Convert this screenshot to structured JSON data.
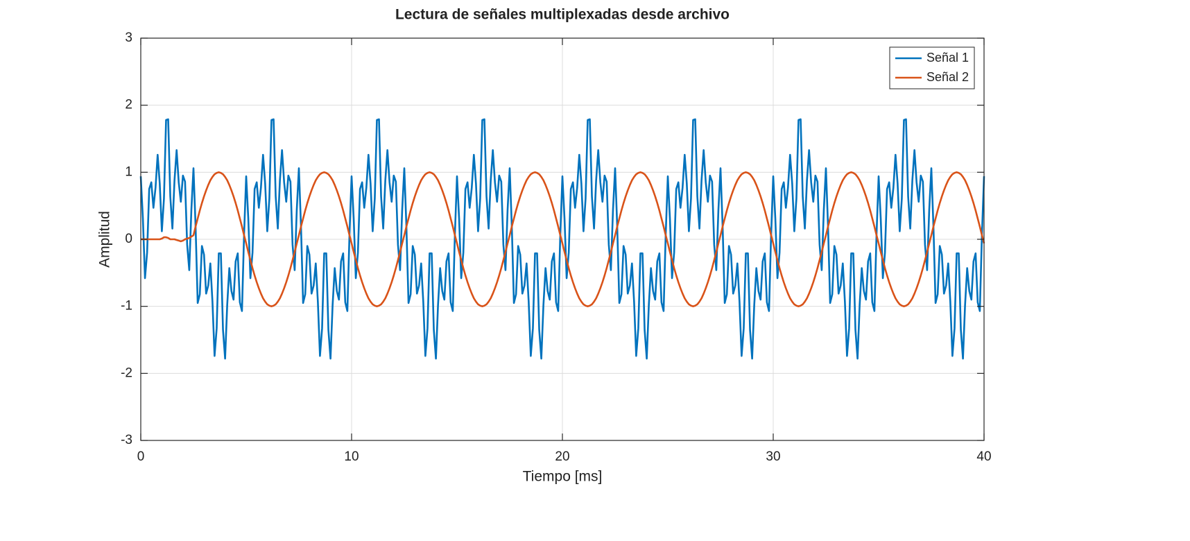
{
  "chart_data": {
    "type": "line",
    "title": "Lectura de señales multiplexadas desde archivo",
    "x_label": "Tiempo [ms]",
    "y_label": "Amplitud",
    "xlim": [
      0,
      40
    ],
    "xticks": [
      0,
      10,
      20,
      30,
      40
    ],
    "ylim": [
      -3,
      3
    ],
    "yticks": [
      -3,
      -2,
      -1,
      0,
      1,
      2,
      3
    ],
    "grid": true,
    "legend": "upper right",
    "x": [
      0,
      0.1,
      0.2,
      0.3,
      0.4,
      0.5,
      0.6,
      0.7,
      0.8,
      0.9,
      1,
      1.1,
      1.2,
      1.3,
      1.4,
      1.5,
      1.6,
      1.7,
      1.8,
      1.9,
      2,
      2.1,
      2.2,
      2.3,
      2.4,
      2.5,
      2.6,
      2.7,
      2.8,
      2.9,
      3,
      3.1,
      3.2,
      3.3,
      3.4,
      3.5,
      3.6,
      3.7,
      3.8,
      3.9,
      4,
      4.1,
      4.2,
      4.3,
      4.4,
      4.5,
      4.6,
      4.7,
      4.8,
      4.9,
      5,
      5.1,
      5.2,
      5.3,
      5.4,
      5.5,
      5.6,
      5.7,
      5.8,
      5.9,
      6,
      6.1,
      6.2,
      6.3,
      6.4,
      6.5,
      6.6,
      6.7,
      6.8,
      6.9,
      7,
      7.1,
      7.2,
      7.3,
      7.4,
      7.5,
      7.6,
      7.7,
      7.8,
      7.9,
      8,
      8.1,
      8.2,
      8.3,
      8.4,
      8.5,
      8.6,
      8.7,
      8.8,
      8.9,
      9,
      9.1,
      9.2,
      9.3,
      9.4,
      9.5,
      9.6,
      9.7,
      9.8,
      9.9,
      10,
      10.1,
      10.2,
      10.3,
      10.4,
      10.5,
      10.6,
      10.7,
      10.8,
      10.9,
      11,
      11.1,
      11.2,
      11.3,
      11.4,
      11.5,
      11.6,
      11.7,
      11.8,
      11.9,
      12,
      12.1,
      12.2,
      12.3,
      12.4,
      12.5,
      12.6,
      12.7,
      12.8,
      12.9,
      13,
      13.1,
      13.2,
      13.3,
      13.4,
      13.5,
      13.6,
      13.7,
      13.8,
      13.9,
      14,
      14.1,
      14.2,
      14.3,
      14.4,
      14.5,
      14.6,
      14.7,
      14.8,
      14.9,
      15,
      15.1,
      15.2,
      15.3,
      15.4,
      15.5,
      15.6,
      15.7,
      15.8,
      15.9,
      16,
      16.1,
      16.2,
      16.3,
      16.4,
      16.5,
      16.6,
      16.7,
      16.8,
      16.9,
      17,
      17.1,
      17.2,
      17.3,
      17.4,
      17.5,
      17.6,
      17.7,
      17.8,
      17.9,
      18,
      18.1,
      18.2,
      18.3,
      18.4,
      18.5,
      18.6,
      18.7,
      18.8,
      18.9,
      19,
      19.1,
      19.2,
      19.3,
      19.4,
      19.5,
      19.6,
      19.7,
      19.8,
      19.9,
      20,
      20.1,
      20.2,
      20.3,
      20.4,
      20.5,
      20.6,
      20.7,
      20.8,
      20.9,
      21,
      21.1,
      21.2,
      21.3,
      21.4,
      21.5,
      21.6,
      21.7,
      21.8,
      21.9,
      22,
      22.1,
      22.2,
      22.3,
      22.4,
      22.5,
      22.6,
      22.7,
      22.8,
      22.9,
      23,
      23.1,
      23.2,
      23.3,
      23.4,
      23.5,
      23.6,
      23.7,
      23.8,
      23.9,
      24,
      24.1,
      24.2,
      24.3,
      24.4,
      24.5,
      24.6,
      24.7,
      24.8,
      24.9,
      25,
      25.1,
      25.2,
      25.3,
      25.4,
      25.5,
      25.6,
      25.7,
      25.8,
      25.9,
      26,
      26.1,
      26.2,
      26.3,
      26.4,
      26.5,
      26.6,
      26.7,
      26.8,
      26.9,
      27,
      27.1,
      27.2,
      27.3,
      27.4,
      27.5,
      27.6,
      27.7,
      27.8,
      27.9,
      28,
      28.1,
      28.2,
      28.3,
      28.4,
      28.5,
      28.6,
      28.7,
      28.8,
      28.9,
      29,
      29.1,
      29.2,
      29.3,
      29.4,
      29.5,
      29.6,
      29.7,
      29.8,
      29.9,
      30,
      30.1,
      30.2,
      30.3,
      30.4,
      30.5,
      30.6,
      30.7,
      30.8,
      30.9,
      31,
      31.1,
      31.2,
      31.3,
      31.4,
      31.5,
      31.6,
      31.7,
      31.8,
      31.9,
      32,
      32.1,
      32.2,
      32.3,
      32.4,
      32.5,
      32.6,
      32.7,
      32.8,
      32.9,
      33,
      33.1,
      33.2,
      33.3,
      33.4,
      33.5,
      33.6,
      33.7,
      33.8,
      33.9,
      34,
      34.1,
      34.2,
      34.3,
      34.4,
      34.5,
      34.6,
      34.7,
      34.8,
      34.9,
      35,
      35.1,
      35.2,
      35.3,
      35.4,
      35.5,
      35.6,
      35.7,
      35.8,
      35.9,
      36,
      36.1,
      36.2,
      36.3,
      36.4,
      36.5,
      36.6,
      36.7,
      36.8,
      36.9,
      37,
      37.1,
      37.2,
      37.3,
      37.4,
      37.5,
      37.6,
      37.7,
      37.8,
      37.9,
      38,
      38.1,
      38.2,
      38.3,
      38.4,
      38.5,
      38.6,
      38.7,
      38.8,
      38.9,
      39,
      39.1,
      39.2,
      39.3,
      39.4,
      39.5,
      39.6,
      39.7,
      39.8,
      39.9,
      40
    ],
    "series": [
      {
        "name": "Señal 1",
        "color": "#0072bd",
        "values": [
          0.94,
          0.31,
          -0.58,
          -0.2,
          0.75,
          0.85,
          0.47,
          0.77,
          1.26,
          0.83,
          0.12,
          0.61,
          1.78,
          1.79,
          0.64,
          0.16,
          0.88,
          1.33,
          0.85,
          0.56,
          0.95,
          0.86,
          -0.08,
          -0.46,
          0.44,
          1.06,
          0.19,
          -0.95,
          -0.82,
          -0.1,
          -0.23,
          -0.81,
          -0.69,
          -0.36,
          -0.93,
          -1.74,
          -1.33,
          -0.21,
          -0.21,
          -1.35,
          -1.78,
          -0.98,
          -0.43,
          -0.77,
          -0.9,
          -0.33,
          -0.21,
          -0.94,
          -1.07,
          0.07,
          0.94,
          0.31,
          -0.58,
          -0.2,
          0.75,
          0.85,
          0.47,
          0.77,
          1.26,
          0.83,
          0.12,
          0.61,
          1.78,
          1.79,
          0.64,
          0.16,
          0.88,
          1.33,
          0.85,
          0.56,
          0.95,
          0.86,
          -0.08,
          -0.46,
          0.44,
          1.06,
          0.19,
          -0.95,
          -0.82,
          -0.1,
          -0.23,
          -0.81,
          -0.69,
          -0.36,
          -0.93,
          -1.74,
          -1.33,
          -0.21,
          -0.21,
          -1.35,
          -1.78,
          -0.98,
          -0.43,
          -0.77,
          -0.9,
          -0.33,
          -0.21,
          -0.94,
          -1.07,
          0.07,
          0.94,
          0.31,
          -0.58,
          -0.2,
          0.75,
          0.85,
          0.47,
          0.77,
          1.26,
          0.83,
          0.12,
          0.61,
          1.78,
          1.79,
          0.64,
          0.16,
          0.88,
          1.33,
          0.85,
          0.56,
          0.95,
          0.86,
          -0.08,
          -0.46,
          0.44,
          1.06,
          0.19,
          -0.95,
          -0.82,
          -0.1,
          -0.23,
          -0.81,
          -0.69,
          -0.36,
          -0.93,
          -1.74,
          -1.33,
          -0.21,
          -0.21,
          -1.35,
          -1.78,
          -0.98,
          -0.43,
          -0.77,
          -0.9,
          -0.33,
          -0.21,
          -0.94,
          -1.07,
          0.07,
          0.94,
          0.31,
          -0.58,
          -0.2,
          0.75,
          0.85,
          0.47,
          0.77,
          1.26,
          0.83,
          0.12,
          0.61,
          1.78,
          1.79,
          0.64,
          0.16,
          0.88,
          1.33,
          0.85,
          0.56,
          0.95,
          0.86,
          -0.08,
          -0.46,
          0.44,
          1.06,
          0.19,
          -0.95,
          -0.82,
          -0.1,
          -0.23,
          -0.81,
          -0.69,
          -0.36,
          -0.93,
          -1.74,
          -1.33,
          -0.21,
          -0.21,
          -1.35,
          -1.78,
          -0.98,
          -0.43,
          -0.77,
          -0.9,
          -0.33,
          -0.21,
          -0.94,
          -1.07,
          0.07,
          0.94,
          0.31,
          -0.58,
          -0.2,
          0.75,
          0.85,
          0.47,
          0.77,
          1.26,
          0.83,
          0.12,
          0.61,
          1.78,
          1.79,
          0.64,
          0.16,
          0.88,
          1.33,
          0.85,
          0.56,
          0.95,
          0.86,
          -0.08,
          -0.46,
          0.44,
          1.06,
          0.19,
          -0.95,
          -0.82,
          -0.1,
          -0.23,
          -0.81,
          -0.69,
          -0.36,
          -0.93,
          -1.74,
          -1.33,
          -0.21,
          -0.21,
          -1.35,
          -1.78,
          -0.98,
          -0.43,
          -0.77,
          -0.9,
          -0.33,
          -0.21,
          -0.94,
          -1.07,
          0.07,
          0.94,
          0.31,
          -0.58,
          -0.2,
          0.75,
          0.85,
          0.47,
          0.77,
          1.26,
          0.83,
          0.12,
          0.61,
          1.78,
          1.79,
          0.64,
          0.16,
          0.88,
          1.33,
          0.85,
          0.56,
          0.95,
          0.86,
          -0.08,
          -0.46,
          0.44,
          1.06,
          0.19,
          -0.95,
          -0.82,
          -0.1,
          -0.23,
          -0.81,
          -0.69,
          -0.36,
          -0.93,
          -1.74,
          -1.33,
          -0.21,
          -0.21,
          -1.35,
          -1.78,
          -0.98,
          -0.43,
          -0.77,
          -0.9,
          -0.33,
          -0.21,
          -0.94,
          -1.07,
          0.07,
          0.94,
          0.31,
          -0.58,
          -0.2,
          0.75,
          0.85,
          0.47,
          0.77,
          1.26,
          0.83,
          0.12,
          0.61,
          1.78,
          1.79,
          0.64,
          0.16,
          0.88,
          1.33,
          0.85,
          0.56,
          0.95,
          0.86,
          -0.08,
          -0.46,
          0.44,
          1.06,
          0.19,
          -0.95,
          -0.82,
          -0.1,
          -0.23,
          -0.81,
          -0.69,
          -0.36,
          -0.93,
          -1.74,
          -1.33,
          -0.21,
          -0.21,
          -1.35,
          -1.78,
          -0.98,
          -0.43,
          -0.77,
          -0.9,
          -0.33,
          -0.21,
          -0.94,
          -1.07,
          0.07,
          0.94,
          0.31,
          -0.58,
          -0.2,
          0.75,
          0.85,
          0.47,
          0.77,
          1.26,
          0.83,
          0.12,
          0.61,
          1.78,
          1.79,
          0.64,
          0.16,
          0.88,
          1.33,
          0.85,
          0.56,
          0.95,
          0.86,
          -0.08,
          -0.46,
          0.44,
          1.06,
          0.19,
          -0.95,
          -0.82,
          -0.1,
          -0.23,
          -0.81,
          -0.69,
          -0.36,
          -0.93,
          -1.74,
          -1.33,
          -0.21,
          -0.21,
          -1.35,
          -1.78,
          -0.98,
          -0.43,
          -0.77,
          -0.9,
          -0.33,
          -0.21,
          -0.94,
          -1.07,
          0.07,
          0.94
        ]
      },
      {
        "name": "Señal 2",
        "color": "#d95319",
        "values": [
          0,
          0,
          0,
          0,
          0,
          0,
          0,
          0,
          0,
          0,
          0.01,
          0.03,
          0.03,
          0.02,
          0,
          0,
          0,
          -0.01,
          -0.02,
          -0.03,
          -0.02,
          0,
          0.01,
          0.02,
          0.04,
          0.06,
          0.19,
          0.31,
          0.43,
          0.54,
          0.64,
          0.73,
          0.81,
          0.88,
          0.93,
          0.97,
          0.99,
          1,
          0.99,
          0.97,
          0.93,
          0.88,
          0.81,
          0.73,
          0.64,
          0.54,
          0.43,
          0.31,
          0.19,
          0.06,
          -0.06,
          -0.19,
          -0.31,
          -0.43,
          -0.54,
          -0.64,
          -0.73,
          -0.81,
          -0.88,
          -0.93,
          -0.97,
          -0.99,
          -1,
          -0.99,
          -0.97,
          -0.93,
          -0.88,
          -0.81,
          -0.73,
          -0.64,
          -0.54,
          -0.43,
          -0.31,
          -0.19,
          -0.06,
          0.06,
          0.19,
          0.31,
          0.43,
          0.54,
          0.64,
          0.73,
          0.81,
          0.88,
          0.93,
          0.97,
          0.99,
          1,
          0.99,
          0.97,
          0.93,
          0.88,
          0.81,
          0.73,
          0.64,
          0.54,
          0.43,
          0.31,
          0.19,
          0.06,
          -0.06,
          -0.19,
          -0.31,
          -0.43,
          -0.54,
          -0.64,
          -0.73,
          -0.81,
          -0.88,
          -0.93,
          -0.97,
          -0.99,
          -1,
          -0.99,
          -0.97,
          -0.93,
          -0.88,
          -0.81,
          -0.73,
          -0.64,
          -0.54,
          -0.43,
          -0.31,
          -0.19,
          -0.06,
          0.06,
          0.19,
          0.31,
          0.43,
          0.54,
          0.64,
          0.73,
          0.81,
          0.88,
          0.93,
          0.97,
          0.99,
          1,
          0.99,
          0.97,
          0.93,
          0.88,
          0.81,
          0.73,
          0.64,
          0.54,
          0.43,
          0.31,
          0.19,
          0.06,
          -0.06,
          -0.19,
          -0.31,
          -0.43,
          -0.54,
          -0.64,
          -0.73,
          -0.81,
          -0.88,
          -0.93,
          -0.97,
          -0.99,
          -1,
          -0.99,
          -0.97,
          -0.93,
          -0.88,
          -0.81,
          -0.73,
          -0.64,
          -0.54,
          -0.43,
          -0.31,
          -0.19,
          -0.06,
          0.06,
          0.19,
          0.31,
          0.43,
          0.54,
          0.64,
          0.73,
          0.81,
          0.88,
          0.93,
          0.97,
          0.99,
          1,
          0.99,
          0.97,
          0.93,
          0.88,
          0.81,
          0.73,
          0.64,
          0.54,
          0.43,
          0.31,
          0.19,
          0.06,
          -0.06,
          -0.19,
          -0.31,
          -0.43,
          -0.54,
          -0.64,
          -0.73,
          -0.81,
          -0.88,
          -0.93,
          -0.97,
          -0.99,
          -1,
          -0.99,
          -0.97,
          -0.93,
          -0.88,
          -0.81,
          -0.73,
          -0.64,
          -0.54,
          -0.43,
          -0.31,
          -0.19,
          -0.06,
          0.06,
          0.19,
          0.31,
          0.43,
          0.54,
          0.64,
          0.73,
          0.81,
          0.88,
          0.93,
          0.97,
          0.99,
          1,
          0.99,
          0.97,
          0.93,
          0.88,
          0.81,
          0.73,
          0.64,
          0.54,
          0.43,
          0.31,
          0.19,
          0.06,
          -0.06,
          -0.19,
          -0.31,
          -0.43,
          -0.54,
          -0.64,
          -0.73,
          -0.81,
          -0.88,
          -0.93,
          -0.97,
          -0.99,
          -1,
          -0.99,
          -0.97,
          -0.93,
          -0.88,
          -0.81,
          -0.73,
          -0.64,
          -0.54,
          -0.43,
          -0.31,
          -0.19,
          -0.06,
          0.06,
          0.19,
          0.31,
          0.43,
          0.54,
          0.64,
          0.73,
          0.81,
          0.88,
          0.93,
          0.97,
          0.99,
          1,
          0.99,
          0.97,
          0.93,
          0.88,
          0.81,
          0.73,
          0.64,
          0.54,
          0.43,
          0.31,
          0.19,
          0.06,
          -0.06,
          -0.19,
          -0.31,
          -0.43,
          -0.54,
          -0.64,
          -0.73,
          -0.81,
          -0.88,
          -0.93,
          -0.97,
          -0.99,
          -1,
          -0.99,
          -0.97,
          -0.93,
          -0.88,
          -0.81,
          -0.73,
          -0.64,
          -0.54,
          -0.43,
          -0.31,
          -0.19,
          -0.06,
          0.06,
          0.19,
          0.31,
          0.43,
          0.54,
          0.64,
          0.73,
          0.81,
          0.88,
          0.93,
          0.97,
          0.99,
          1,
          0.99,
          0.97,
          0.93,
          0.88,
          0.81,
          0.73,
          0.64,
          0.54,
          0.43,
          0.31,
          0.19,
          0.06,
          -0.06,
          -0.19,
          -0.31,
          -0.43,
          -0.54,
          -0.64,
          -0.73,
          -0.81,
          -0.88,
          -0.93,
          -0.97,
          -0.99,
          -1,
          -0.99,
          -0.97,
          -0.93,
          -0.88,
          -0.81,
          -0.73,
          -0.64,
          -0.54,
          -0.43,
          -0.31,
          -0.19,
          -0.06,
          0.06,
          0.19,
          0.31,
          0.43,
          0.54,
          0.64,
          0.73,
          0.81,
          0.88,
          0.93,
          0.97,
          0.99,
          1,
          0.99,
          0.97,
          0.93,
          0.88,
          0.81,
          0.73,
          0.64,
          0.54,
          0.43,
          0.31,
          0.19,
          0.06,
          -0.06
        ]
      }
    ]
  }
}
